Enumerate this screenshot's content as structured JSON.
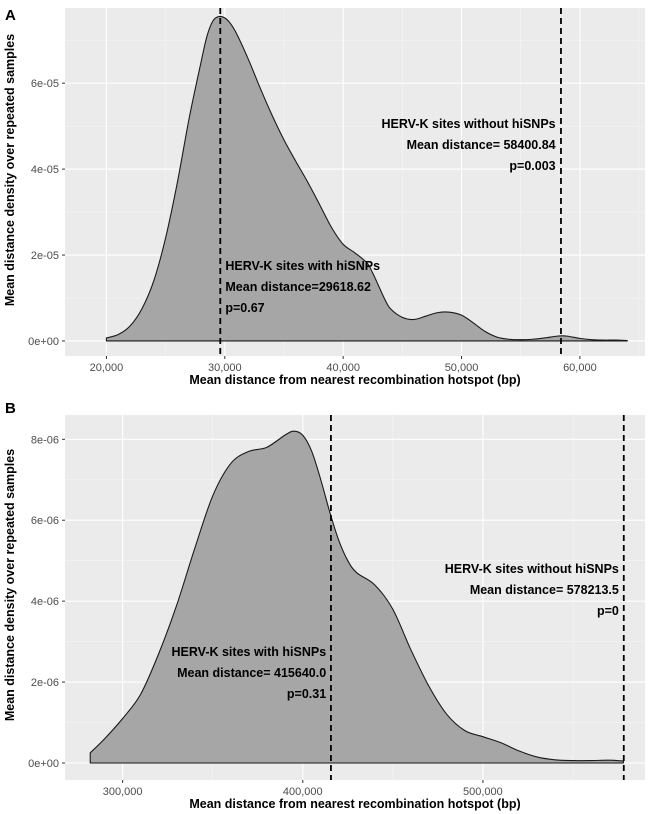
{
  "colors": {
    "panel_bg": "#ebebeb",
    "grid_major": "#ffffff",
    "grid_minor": "#f5f5f5",
    "fill": "#a6a6a6",
    "line": "#1a1a1a",
    "tick_text": "#4d4d4d"
  },
  "chart_data": [
    {
      "type": "area",
      "panel_label": "A",
      "title": "",
      "xlabel": "Mean distance from nearest recombination hotspot (bp)",
      "ylabel": "Mean distance density over repeated samples",
      "xlim": [
        16500,
        65500
      ],
      "ylim": [
        -3.5e-06,
        7.75e-05
      ],
      "x_ticks": [
        20000,
        30000,
        40000,
        50000,
        60000
      ],
      "x_tick_labels": [
        "20,000",
        "30,000",
        "40,000",
        "50,000",
        "60,000"
      ],
      "y_ticks": [
        0,
        2e-05,
        4e-05,
        6e-05
      ],
      "y_tick_labels": [
        "0e+00",
        "2e-05",
        "4e-05",
        "6e-05"
      ],
      "density": {
        "x": [
          20000,
          21000,
          22000,
          23000,
          24000,
          25000,
          26000,
          27000,
          28000,
          28500,
          29000,
          29500,
          30000,
          30500,
          31000,
          32000,
          33000,
          34000,
          35000,
          36000,
          37000,
          38000,
          39000,
          40000,
          41000,
          42000,
          42500,
          43000,
          43500,
          44000,
          45000,
          46000,
          47000,
          48000,
          49000,
          50000,
          51000,
          52000,
          53000,
          54000,
          55000,
          56000,
          57000,
          58000,
          58500,
          59000,
          60000,
          61000,
          62000,
          63000,
          64000
        ],
        "y": [
          7e-07,
          1.5e-06,
          3.5e-06,
          7.5e-06,
          1.4e-05,
          2.4e-05,
          3.7e-05,
          5.2e-05,
          6.5e-05,
          7.1e-05,
          7.45e-05,
          7.55e-05,
          7.52e-05,
          7.38e-05,
          7.15e-05,
          6.55e-05,
          5.88e-05,
          5.25e-05,
          4.68e-05,
          4.18e-05,
          3.7e-05,
          3.18e-05,
          2.65e-05,
          2.25e-05,
          2.05e-05,
          1.82e-05,
          1.58e-05,
          1.28e-05,
          9.8e-06,
          7.5e-06,
          5.5e-06,
          5e-06,
          5.8e-06,
          6.6e-06,
          6.7e-06,
          6e-06,
          4.2e-06,
          2.2e-06,
          9e-07,
          4e-07,
          3e-07,
          4e-07,
          7e-07,
          1.1e-06,
          1.2e-06,
          1.1e-06,
          6e-07,
          3e-07,
          2e-07,
          2e-07,
          1e-07
        ]
      },
      "vlines": [
        29618.62,
        58400.84
      ],
      "annotations": [
        {
          "lines": [
            "HERV-K sites with hiSNPs",
            "Mean distance=29618.62",
            "p=0.67"
          ],
          "x": 30050,
          "y_top": 1.65e-05,
          "align": "start"
        },
        {
          "lines": [
            "HERV-K sites without hiSNPs",
            "Mean distance= 58400.84",
            "p=0.003"
          ],
          "x": 57950,
          "y_top": 4.96e-05,
          "align": "end"
        }
      ]
    },
    {
      "type": "area",
      "panel_label": "B",
      "title": "",
      "xlabel": "Mean distance from nearest recombination hotspot (bp)",
      "ylabel": "Mean distance density over repeated samples",
      "xlim": [
        268000,
        590000
      ],
      "ylim": [
        -4.2e-07,
        8.6e-06
      ],
      "x_ticks": [
        300000,
        400000,
        500000
      ],
      "x_tick_labels": [
        "300,000",
        "400,000",
        "500,000"
      ],
      "y_ticks": [
        0,
        2e-06,
        4e-06,
        6e-06,
        8e-06
      ],
      "y_tick_labels": [
        "0e+00",
        "2e-06",
        "4e-06",
        "6e-06",
        "8e-06"
      ],
      "density": {
        "x": [
          282000,
          290000,
          300000,
          310000,
          320000,
          330000,
          340000,
          350000,
          360000,
          370000,
          380000,
          390000,
          395000,
          400000,
          405000,
          410000,
          415000,
          420000,
          425000,
          430000,
          440000,
          450000,
          460000,
          470000,
          480000,
          490000,
          500000,
          510000,
          520000,
          530000,
          540000,
          550000,
          560000,
          570000,
          578000
        ],
        "y": [
          2.5e-07,
          6e-07,
          1.1e-06,
          1.7e-06,
          2.7e-06,
          3.9e-06,
          5.3e-06,
          6.6e-06,
          7.4e-06,
          7.7e-06,
          7.8e-06,
          8.1e-06,
          8.2e-06,
          8.1e-06,
          7.7e-06,
          7e-06,
          6.2e-06,
          5.5e-06,
          5e-06,
          4.7e-06,
          4.4e-06,
          3.8e-06,
          2.8e-06,
          1.9e-06,
          1.2e-06,
          8e-07,
          6.5e-07,
          5e-07,
          3e-07,
          1.5e-07,
          8e-08,
          6e-08,
          6e-08,
          7e-08,
          5e-08
        ]
      },
      "vlines": [
        415640.0,
        578213.5
      ],
      "annotations": [
        {
          "lines": [
            "HERV-K sites with hiSNPs",
            "Mean distance= 415640.0",
            "p=0.31"
          ],
          "x": 413000,
          "y_top": 2.65e-06,
          "align": "end"
        },
        {
          "lines": [
            "HERV-K sites without hiSNPs",
            "Mean distance= 578213.5",
            "p=0"
          ],
          "x": 575500,
          "y_top": 4.7e-06,
          "align": "end"
        }
      ]
    }
  ]
}
